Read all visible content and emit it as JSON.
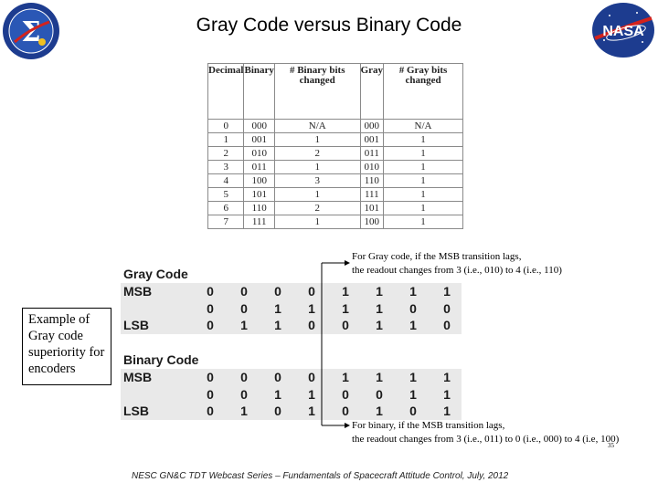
{
  "title": "Gray Code versus Binary Code",
  "table": {
    "headers": [
      "Decimal",
      "Binary",
      "# Binary bits changed",
      "Gray",
      "# Gray bits changed"
    ],
    "rows": [
      [
        "0",
        "000",
        "N/A",
        "000",
        "N/A"
      ],
      [
        "1",
        "001",
        "1",
        "001",
        "1"
      ],
      [
        "2",
        "010",
        "2",
        "011",
        "1"
      ],
      [
        "3",
        "011",
        "1",
        "010",
        "1"
      ],
      [
        "4",
        "100",
        "3",
        "110",
        "1"
      ],
      [
        "5",
        "101",
        "1",
        "111",
        "1"
      ],
      [
        "6",
        "110",
        "2",
        "101",
        "1"
      ],
      [
        "7",
        "111",
        "1",
        "100",
        "1"
      ]
    ]
  },
  "gray": {
    "heading": "Gray Code",
    "msb_label": "MSB",
    "lsb_label": "LSB",
    "rows": [
      [
        "0",
        "0",
        "0",
        "0",
        "1",
        "1",
        "1",
        "1"
      ],
      [
        "0",
        "0",
        "1",
        "1",
        "1",
        "1",
        "0",
        "0"
      ],
      [
        "0",
        "1",
        "1",
        "0",
        "0",
        "1",
        "1",
        "0"
      ]
    ]
  },
  "binary": {
    "heading": "Binary Code",
    "msb_label": "MSB",
    "lsb_label": "LSB",
    "rows": [
      [
        "0",
        "0",
        "0",
        "0",
        "1",
        "1",
        "1",
        "1"
      ],
      [
        "0",
        "0",
        "1",
        "1",
        "0",
        "0",
        "1",
        "1"
      ],
      [
        "0",
        "1",
        "0",
        "1",
        "0",
        "1",
        "0",
        "1"
      ]
    ]
  },
  "side_box": "Example of Gray code superiority for encoders",
  "note_gray": [
    "For Gray code, if the MSB transition lags,",
    "the readout changes from 3 (i.e., 010) to 4 (i.e., 110)"
  ],
  "note_binary": [
    "For binary, if the MSB transition lags,",
    "the readout changes from 3 (i.e., 011) to 0 (i.e., 000) to 4 (i.e, 100)"
  ],
  "footer": "NESC GN&C TDT Webcast Series – Fundamentals of Spacecraft Attitude Control, July, 2012",
  "page_number": "35",
  "logos": {
    "left": "nesc-sigma-logo",
    "right": "nasa-meatball-logo",
    "nasa_text": "NASA"
  },
  "colors": {
    "band": "#e9e9e9",
    "nasa_blue": "#1d3c8f",
    "nasa_red": "#d3221c"
  }
}
